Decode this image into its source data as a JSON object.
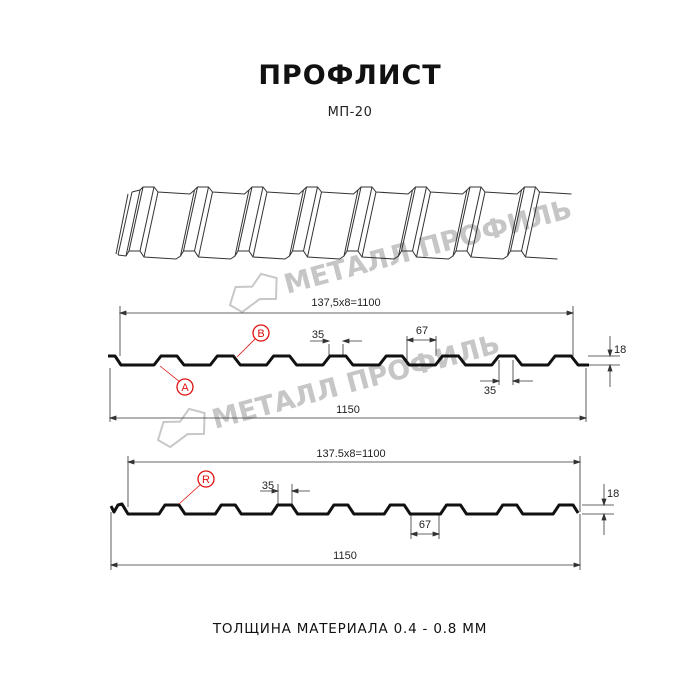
{
  "title": "ПРОФЛИСТ",
  "subtitle": "МП-20",
  "footer": "ТОЛЩИНА МАТЕРИАЛА 0.4 - 0.8 ММ",
  "watermark": "МЕТАЛЛ ПРОФИЛЬ",
  "colors": {
    "profile": "#111111",
    "dimension": "#333333",
    "marker": "#e01010",
    "watermark": "#b4b4b4"
  },
  "drawing1": {
    "overall_useful": "137,5x8=1100",
    "overall_full": "1150",
    "top_width": "35",
    "bottom_width_label": "35",
    "rib_base": "67",
    "height": "18",
    "marker_a": "A",
    "marker_b": "B"
  },
  "drawing2": {
    "overall_useful": "137.5x8=1100",
    "overall_full": "1150",
    "top_width": "35",
    "rib_base": "67",
    "height": "18",
    "marker_r": "R"
  }
}
